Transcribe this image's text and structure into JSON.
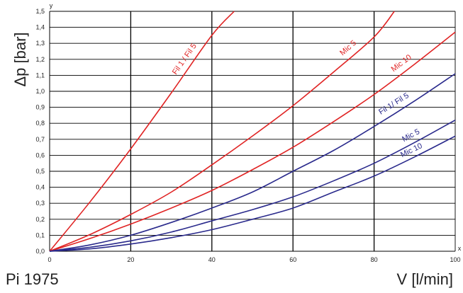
{
  "chart_data": {
    "type": "line",
    "title": "",
    "xlabel": "V [l/min]",
    "ylabel": "Δp [bar]",
    "x_axis_letter": "x",
    "y_axis_letter": "y",
    "xlim": [
      0,
      100
    ],
    "ylim": [
      0,
      1.5
    ],
    "x_ticks": [
      0,
      20,
      40,
      60,
      80,
      100
    ],
    "x_tick_labels": [
      "0",
      "20",
      "40",
      "60",
      "80",
      "100"
    ],
    "x_major_gridlines": [
      20,
      40,
      60,
      80
    ],
    "y_ticks": [
      0.0,
      0.1,
      0.2,
      0.3,
      0.4,
      0.5,
      0.6,
      0.7,
      0.8,
      0.9,
      1.0,
      1.1,
      1.2,
      1.3,
      1.4,
      1.5
    ],
    "y_tick_labels": [
      "0,0",
      "0,1",
      "0,2",
      "0,3",
      "0,4",
      "0,5",
      "0,6",
      "0,7",
      "0,8",
      "0,9",
      "1,0",
      "1,1",
      "1,2",
      "1,3",
      "1,4",
      "1,5"
    ],
    "grid": true,
    "footer_label": "Pi 1975",
    "colors": {
      "red": "#e02424",
      "blue": "#2a2a8c",
      "grid": "#000000",
      "text": "#222222"
    },
    "series": [
      {
        "name": "Fil 1 / Fil 5",
        "color": "#e02424",
        "x": [
          0,
          10,
          20,
          30,
          40,
          45.5
        ],
        "y": [
          0,
          0.31,
          0.64,
          0.99,
          1.35,
          1.5
        ]
      },
      {
        "name": "Mic 5",
        "color": "#e02424",
        "x": [
          0,
          10,
          20,
          30,
          40,
          50,
          60,
          70,
          80,
          85
        ],
        "y": [
          0,
          0.105,
          0.23,
          0.37,
          0.54,
          0.72,
          0.91,
          1.12,
          1.34,
          1.5
        ]
      },
      {
        "name": "Mic 10",
        "color": "#e02424",
        "x": [
          0,
          10,
          20,
          30,
          40,
          50,
          60,
          70,
          80,
          90,
          100
        ],
        "y": [
          0,
          0.08,
          0.17,
          0.27,
          0.38,
          0.51,
          0.65,
          0.81,
          0.98,
          1.17,
          1.37
        ]
      },
      {
        "name": "Fil 1/ Fil 5",
        "color": "#2a2a8c",
        "x": [
          0,
          10,
          20,
          30,
          40,
          50,
          60,
          70,
          80,
          90,
          100
        ],
        "y": [
          0,
          0.04,
          0.1,
          0.18,
          0.27,
          0.37,
          0.5,
          0.63,
          0.78,
          0.94,
          1.11
        ]
      },
      {
        "name": "Mic 5",
        "color": "#2a2a8c",
        "x": [
          0,
          10,
          20,
          30,
          40,
          50,
          60,
          70,
          80,
          90,
          100
        ],
        "y": [
          0,
          0.025,
          0.065,
          0.12,
          0.19,
          0.26,
          0.34,
          0.44,
          0.55,
          0.68,
          0.82
        ]
      },
      {
        "name": "Mic 10",
        "color": "#2a2a8c",
        "x": [
          0,
          10,
          20,
          30,
          40,
          50,
          60,
          70,
          80,
          90,
          100
        ],
        "y": [
          0,
          0.015,
          0.045,
          0.085,
          0.135,
          0.2,
          0.27,
          0.37,
          0.47,
          0.59,
          0.72
        ]
      }
    ]
  }
}
